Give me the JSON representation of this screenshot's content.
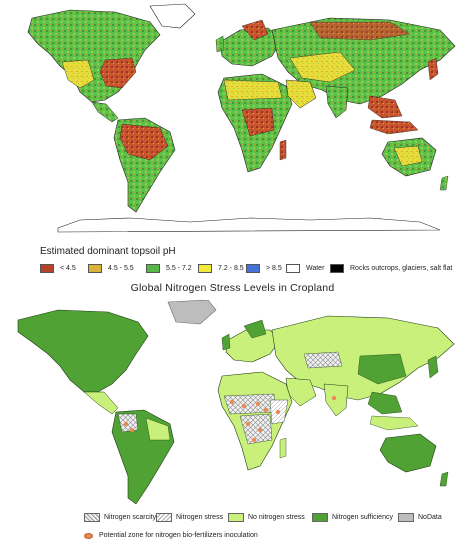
{
  "top_map": {
    "legend_title": "Estimated dominant topsoil pH",
    "legend_items": [
      {
        "label": "< 4.5",
        "color": "#b5442a"
      },
      {
        "label": "4.5 - 5.5",
        "color": "#d8b43a"
      },
      {
        "label": "5.5 - 7.2",
        "color": "#57b84a"
      },
      {
        "label": "7.2 - 8.5",
        "color": "#f0ea3a"
      },
      {
        "label": "> 8.5",
        "color": "#4470d8"
      },
      {
        "label": "Water",
        "color": "#ffffff"
      },
      {
        "label": "Rocks outcrops, glaciers, salt flat",
        "color": "#000000"
      }
    ]
  },
  "bottom_map": {
    "title": "Global Nitrogen Stress Levels in Cropland",
    "legend_items": [
      {
        "label": "Nitrogen scarcity",
        "pattern": "crosshatch",
        "color": "#cfcfcf"
      },
      {
        "label": "Nitrogen stress",
        "pattern": "hatch",
        "color": "#eeeeee"
      },
      {
        "label": "No nitrogen stress",
        "pattern": "solid",
        "color": "#c9f07a"
      },
      {
        "label": "Nitrogen sufficiency",
        "pattern": "solid",
        "color": "#4fa233"
      },
      {
        "label": "NoData",
        "pattern": "solid",
        "color": "#bdbdbd"
      }
    ],
    "marker_label": "Potential zone for nitrogen bio-fertilizers inoculation",
    "marker_color": "#e98a55"
  }
}
